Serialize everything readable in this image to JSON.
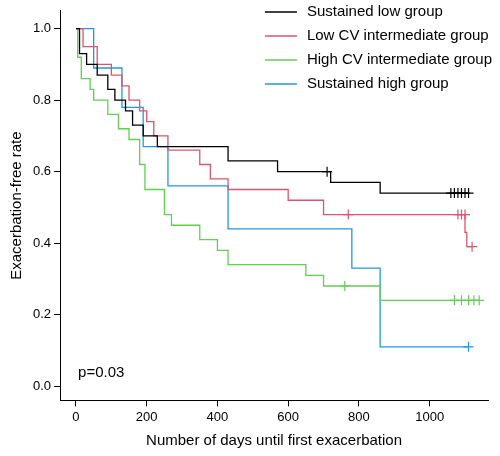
{
  "chart_data": {
    "type": "line",
    "x_label": "Number of days until first exacerbation",
    "y_label": "Exacerbation-free rate",
    "annotations": [
      {
        "text": "p=0.03"
      }
    ],
    "xlim": [
      -45,
      1165
    ],
    "xticks": [
      0,
      200,
      400,
      600,
      800,
      1000
    ],
    "ylim": [
      -0.04,
      1.05
    ],
    "yticks": [
      {
        "value": 0,
        "label": "0.0"
      },
      0.2,
      0.4,
      0.6,
      0.8,
      {
        "value": 1,
        "label": "1.0"
      }
    ],
    "grid": false,
    "legend": "upper right",
    "line_style": "step",
    "series": [
      {
        "name": "Sustained low group",
        "color": "#000000",
        "x": [
          0,
          10,
          30,
          60,
          90,
          110,
          140,
          160,
          190,
          230,
          430,
          570,
          720,
          860,
          1110
        ],
        "values": [
          1.0,
          0.93,
          0.9,
          0.87,
          0.83,
          0.8,
          0.77,
          0.73,
          0.7,
          0.67,
          0.63,
          0.6,
          0.57,
          0.54,
          0.54
        ],
        "censored_x": [
          710,
          1060,
          1070,
          1080,
          1090,
          1100,
          1110
        ],
        "censored_values": [
          0.6,
          0.54,
          0.54,
          0.54,
          0.54,
          0.54,
          0.54
        ]
      },
      {
        "name": "Low CV intermediate group",
        "color": "#df536b",
        "x": [
          0,
          20,
          60,
          100,
          130,
          150,
          180,
          200,
          220,
          260,
          350,
          380,
          430,
          600,
          700,
          1100,
          1105,
          1120
        ],
        "values": [
          1.0,
          0.95,
          0.9,
          0.87,
          0.84,
          0.8,
          0.77,
          0.74,
          0.7,
          0.66,
          0.62,
          0.58,
          0.55,
          0.52,
          0.48,
          0.43,
          0.39,
          0.39
        ],
        "censored_x": [
          770,
          1080,
          1090,
          1100,
          1120
        ],
        "censored_values": [
          0.48,
          0.48,
          0.48,
          0.48,
          0.39
        ]
      },
      {
        "name": "High CV intermediate group",
        "color": "#61d04f",
        "x": [
          0,
          5,
          15,
          40,
          50,
          90,
          120,
          150,
          180,
          195,
          250,
          270,
          350,
          400,
          430,
          650,
          700,
          860,
          1140
        ],
        "values": [
          1.0,
          0.92,
          0.86,
          0.83,
          0.8,
          0.76,
          0.72,
          0.69,
          0.62,
          0.55,
          0.48,
          0.45,
          0.41,
          0.38,
          0.34,
          0.31,
          0.28,
          0.24,
          0.24
        ],
        "censored_x": [
          760,
          1070,
          1090,
          1110,
          1125,
          1140
        ],
        "censored_values": [
          0.28,
          0.24,
          0.24,
          0.24,
          0.24,
          0.24
        ]
      },
      {
        "name": "Sustained high group",
        "color": "#2297e6",
        "x": [
          0,
          50,
          130,
          190,
          260,
          430,
          780,
          860,
          1110
        ],
        "values": [
          1.0,
          0.89,
          0.78,
          0.67,
          0.56,
          0.44,
          0.33,
          0.11,
          0.11
        ],
        "censored_x": [
          1110
        ],
        "censored_values": [
          0.11
        ]
      }
    ]
  }
}
